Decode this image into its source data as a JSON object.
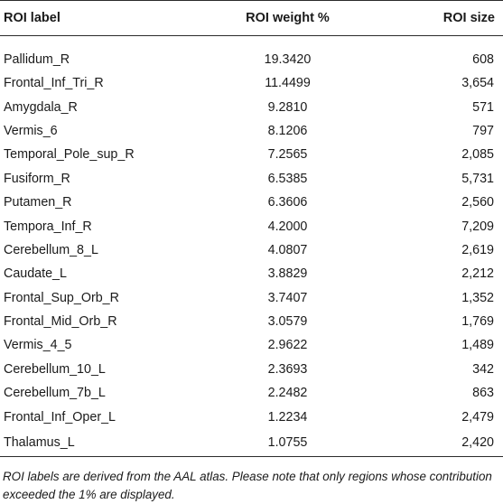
{
  "table": {
    "headers": {
      "label": "ROI label",
      "weight": "ROI weight %",
      "size": "ROI size"
    },
    "rows": [
      {
        "label": "Pallidum_R",
        "weight": "19.3420",
        "size": "608"
      },
      {
        "label": "Frontal_Inf_Tri_R",
        "weight": "11.4499",
        "size": "3,654"
      },
      {
        "label": "Amygdala_R",
        "weight": "9.2810",
        "size": "571"
      },
      {
        "label": "Vermis_6",
        "weight": "8.1206",
        "size": "797"
      },
      {
        "label": "Temporal_Pole_sup_R",
        "weight": "7.2565",
        "size": "2,085"
      },
      {
        "label": "Fusiform_R",
        "weight": "6.5385",
        "size": "5,731"
      },
      {
        "label": "Putamen_R",
        "weight": "6.3606",
        "size": "2,560"
      },
      {
        "label": "Tempora_Inf_R",
        "weight": "4.2000",
        "size": "7,209"
      },
      {
        "label": "Cerebellum_8_L",
        "weight": "4.0807",
        "size": "2,619"
      },
      {
        "label": "Caudate_L",
        "weight": "3.8829",
        "size": "2,212"
      },
      {
        "label": "Frontal_Sup_Orb_R",
        "weight": "3.7407",
        "size": "1,352"
      },
      {
        "label": "Frontal_Mid_Orb_R",
        "weight": "3.0579",
        "size": "1,769"
      },
      {
        "label": "Vermis_4_5",
        "weight": "2.9622",
        "size": "1,489"
      },
      {
        "label": "Cerebellum_10_L",
        "weight": "2.3693",
        "size": "342"
      },
      {
        "label": "Cerebellum_7b_L",
        "weight": "2.2482",
        "size": "863"
      },
      {
        "label": "Frontal_Inf_Oper_L",
        "weight": "1.2234",
        "size": "2,479"
      },
      {
        "label": "Thalamus_L",
        "weight": "1.0755",
        "size": "2,420"
      }
    ]
  },
  "footnote": "ROI labels are derived from the AAL atlas. Please note that only regions whose contribution exceeded the 1% are displayed."
}
